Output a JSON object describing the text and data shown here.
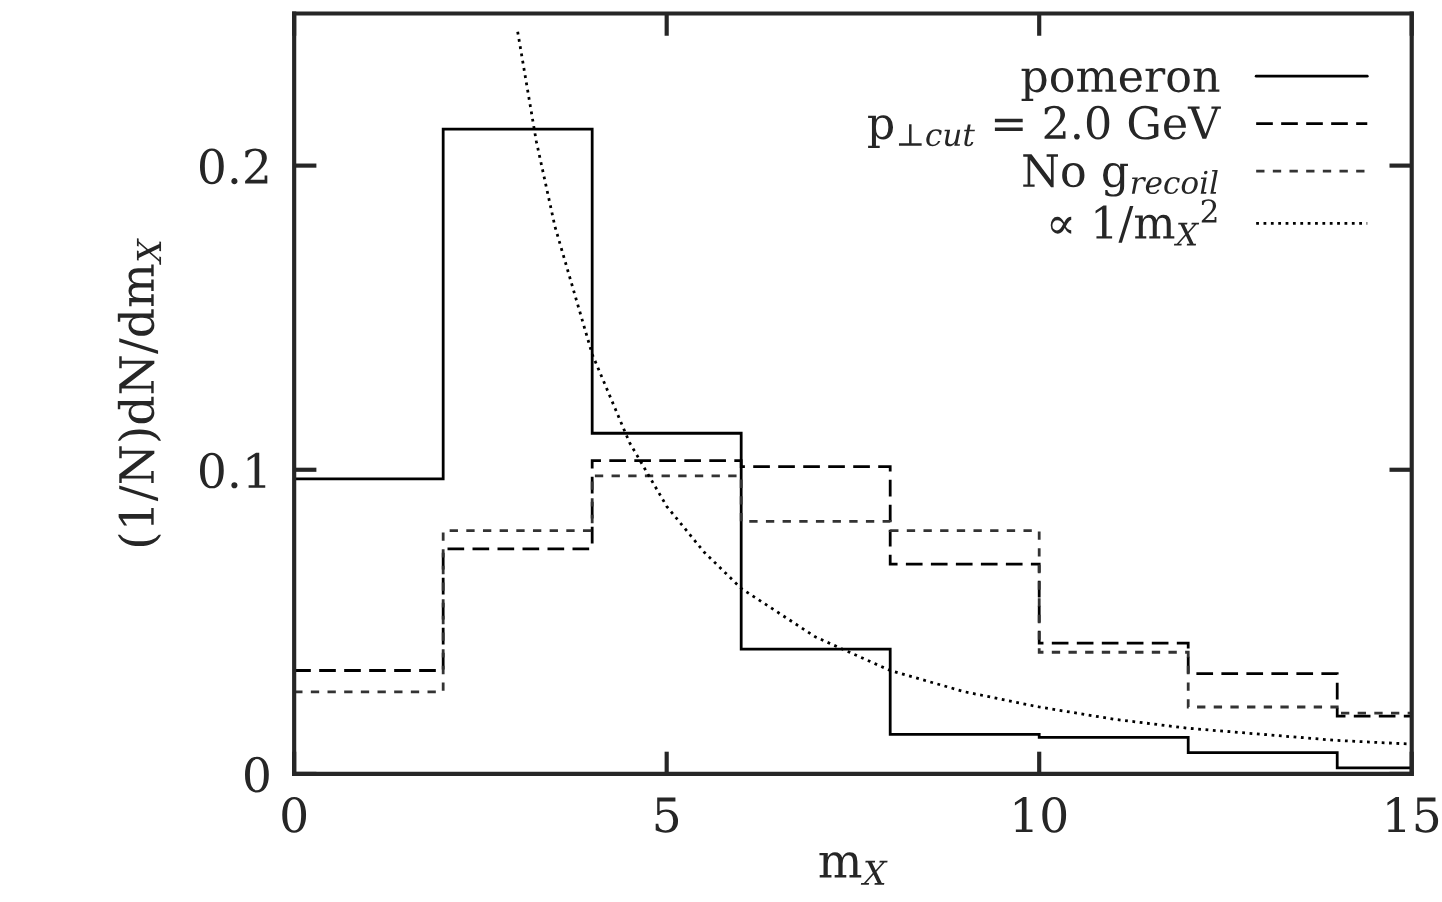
{
  "chart_data": {
    "type": "histogram",
    "xlabel": "m$_{X}$",
    "ylabel": "(1/N)dN/dm$_{X}$",
    "bins": [
      0,
      2,
      4,
      6,
      8,
      10,
      12,
      14,
      15
    ],
    "series": [
      {
        "name": "pomeron",
        "color": "#000000",
        "line_style": "solid",
        "values": [
          0.097,
          0.212,
          0.112,
          0.041,
          0.013,
          0.012,
          0.007,
          0.002
        ]
      },
      {
        "name": "p$_{⊥cut}$ = 2.0 GeV",
        "color": "#000000",
        "line_style": "dashed",
        "values": [
          0.034,
          0.074,
          0.103,
          0.101,
          0.069,
          0.043,
          0.033,
          0.019
        ]
      },
      {
        "name": "No g$_{recoil}$",
        "color": "#333333",
        "line_style": "dashed",
        "values": [
          0.027,
          0.08,
          0.098,
          0.083,
          0.08,
          0.04,
          0.022,
          0.02
        ]
      },
      {
        "name": "∝ 1/m$_{X}$$^{2}$",
        "type": "line",
        "color": "#000000",
        "line_style": "dotted",
        "x": [
          3.0,
          3.25,
          3.5,
          4,
          4.5,
          5,
          5.5,
          6,
          7,
          8,
          9,
          10,
          11,
          12,
          13,
          14,
          15
        ],
        "values": [
          0.244,
          0.208,
          0.18,
          0.138,
          0.109,
          0.088,
          0.073,
          0.061,
          0.045,
          0.034,
          0.027,
          0.022,
          0.018,
          0.015,
          0.013,
          0.011,
          0.0098
        ]
      }
    ],
    "xlim": [
      0,
      15
    ],
    "ylim": [
      0,
      0.25
    ],
    "xticks": [
      0,
      5,
      10,
      15
    ],
    "yticks": [
      0,
      0.1,
      0.2
    ],
    "legend": "top right",
    "grid": false
  }
}
